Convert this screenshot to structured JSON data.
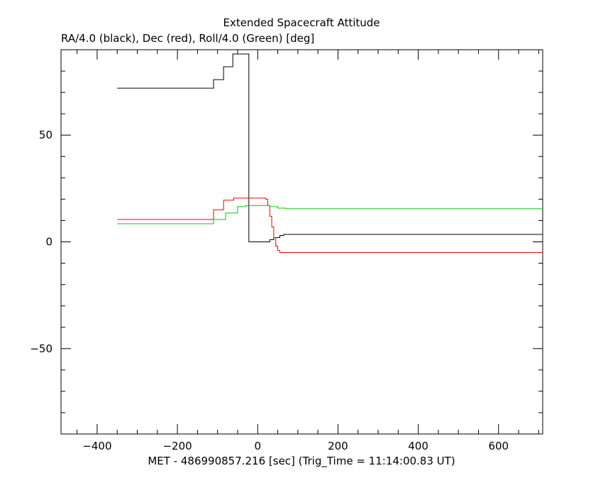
{
  "chart_data": {
    "type": "line",
    "title": "Extended Spacecraft Attitude",
    "subtitle": "RA/4.0 (black), Dec (red), Roll/4.0 (Green) [deg]",
    "xlabel": "MET - 486990857.216 [sec] (Trig_Time = 11:14:00.83 UT)",
    "ylabel": "",
    "xlim": [
      -490,
      710
    ],
    "ylim": [
      -90,
      90
    ],
    "xticks": [
      -400,
      -200,
      0,
      200,
      400,
      600
    ],
    "yticks": [
      -50,
      0,
      50
    ],
    "grid": false,
    "series": [
      {
        "color": "#000000",
        "step": true,
        "x": [
          -350,
          -110,
          -110,
          -85,
          -85,
          -62,
          -62,
          -35,
          -35,
          -22,
          -22,
          18,
          30,
          40,
          55,
          65,
          710
        ],
        "y": [
          72,
          72,
          76,
          76,
          82,
          82,
          88,
          88,
          88,
          88,
          0,
          0,
          1,
          2,
          3,
          3.5,
          3.5
        ]
      },
      {
        "color": "#ff0000",
        "step": true,
        "x": [
          -350,
          -110,
          -110,
          -85,
          -85,
          -60,
          -60,
          -30,
          -30,
          0,
          20,
          25,
          30,
          35,
          40,
          45,
          50,
          55,
          60,
          65,
          70,
          710
        ],
        "y": [
          10.5,
          10.5,
          15,
          15,
          19.5,
          19.5,
          20.5,
          20.5,
          20.5,
          20.5,
          20,
          17,
          12,
          7,
          2,
          -2,
          -4,
          -5,
          -5,
          -5,
          -5,
          -5
        ]
      },
      {
        "color": "#00cc00",
        "step": true,
        "x": [
          -350,
          -110,
          -110,
          -80,
          -80,
          -50,
          -50,
          -30,
          10,
          30,
          50,
          70,
          710
        ],
        "y": [
          8.5,
          8.5,
          10.5,
          10.5,
          13.5,
          13.5,
          16.5,
          17,
          17,
          16.5,
          15.8,
          15.5,
          15.5
        ]
      }
    ]
  }
}
